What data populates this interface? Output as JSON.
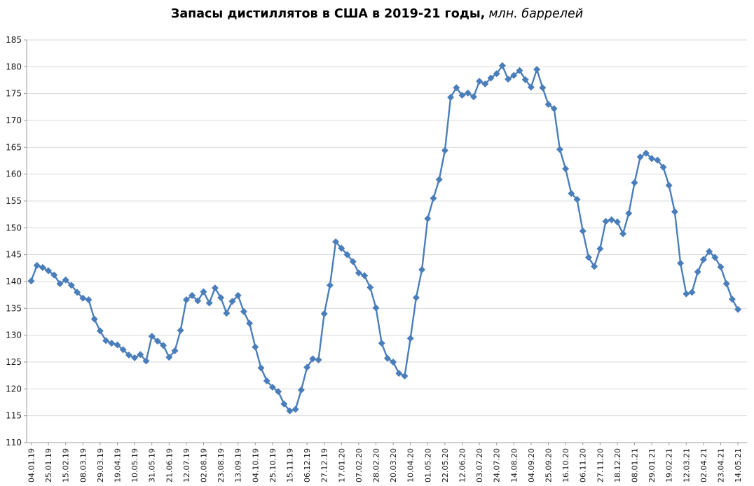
{
  "title": {
    "main": "Запасы дистиллятов в США в 2019-21 годы,",
    "unit": "млн. баррелей"
  },
  "colors": {
    "line": "#4A7EBB",
    "gridline": "#D9D9D9",
    "axis": "#9B9B9B",
    "tick_label": "#1a1a1a",
    "background": "#ffffff"
  },
  "axes": {
    "y_tick_labels": [
      "110",
      "115",
      "120",
      "125",
      "130",
      "135",
      "140",
      "145",
      "150",
      "155",
      "160",
      "165",
      "170",
      "175",
      "180",
      "185"
    ],
    "x_tick_labels": [
      "04.01.19",
      "25.01.19",
      "15.02.19",
      "08.03.19",
      "29.03.19",
      "19.04.19",
      "10.05.19",
      "31.05.19",
      "21.06.19",
      "12.07.19",
      "02.08.19",
      "23.08.19",
      "13.09.19",
      "04.10.19",
      "25.10.19",
      "15.11.19",
      "06.12.19",
      "27.12.19",
      "17.01.20",
      "07.02.20",
      "28.02.20",
      "20.03.20",
      "10.04.20",
      "01.05.20",
      "22.05.20",
      "12.06.20",
      "03.07.20",
      "24.07.20",
      "14.08.20",
      "04.09.20",
      "25.09.20",
      "16.10.20",
      "06.11.20",
      "27.11.20",
      "18.12.20",
      "08.01.21",
      "29.01.21",
      "19.02.21",
      "12.03.21",
      "02.04.21",
      "23.04.21",
      "14.05.21"
    ]
  },
  "chart_data": {
    "type": "line",
    "title": "Запасы дистиллятов в США в 2019-21 годы, млн. баррелей",
    "xlabel": "",
    "ylabel": "",
    "ylim": [
      110,
      185
    ],
    "y_tick_step": 5,
    "x_tick_every": 3,
    "grid": "horizontal-only",
    "legend": "none",
    "marker": "diamond",
    "x": [
      "04.01.19",
      "11.01.19",
      "18.01.19",
      "25.01.19",
      "01.02.19",
      "08.02.19",
      "15.02.19",
      "22.02.19",
      "01.03.19",
      "08.03.19",
      "15.03.19",
      "22.03.19",
      "29.03.19",
      "05.04.19",
      "12.04.19",
      "19.04.19",
      "26.04.19",
      "03.05.19",
      "10.05.19",
      "17.05.19",
      "24.05.19",
      "31.05.19",
      "07.06.19",
      "14.06.19",
      "21.06.19",
      "28.06.19",
      "05.07.19",
      "12.07.19",
      "19.07.19",
      "26.07.19",
      "02.08.19",
      "09.08.19",
      "16.08.19",
      "23.08.19",
      "30.08.19",
      "06.09.19",
      "13.09.19",
      "20.09.19",
      "27.09.19",
      "04.10.19",
      "11.10.19",
      "18.10.19",
      "25.10.19",
      "01.11.19",
      "08.11.19",
      "15.11.19",
      "22.11.19",
      "29.11.19",
      "06.12.19",
      "13.12.19",
      "20.12.19",
      "27.12.19",
      "03.01.20",
      "10.01.20",
      "17.01.20",
      "24.01.20",
      "31.01.20",
      "07.02.20",
      "14.02.20",
      "21.02.20",
      "28.02.20",
      "06.03.20",
      "13.03.20",
      "20.03.20",
      "27.03.20",
      "03.04.20",
      "10.04.20",
      "17.04.20",
      "24.04.20",
      "01.05.20",
      "08.05.20",
      "15.05.20",
      "22.05.20",
      "29.05.20",
      "05.06.20",
      "12.06.20",
      "19.06.20",
      "26.06.20",
      "03.07.20",
      "10.07.20",
      "17.07.20",
      "24.07.20",
      "31.07.20",
      "07.08.20",
      "14.08.20",
      "21.08.20",
      "28.08.20",
      "04.09.20",
      "11.09.20",
      "18.09.20",
      "25.09.20",
      "02.10.20",
      "09.10.20",
      "16.10.20",
      "23.10.20",
      "30.10.20",
      "06.11.20",
      "13.11.20",
      "20.11.20",
      "27.11.20",
      "04.12.20",
      "11.12.20",
      "18.12.20",
      "25.12.20",
      "01.01.21",
      "08.01.21",
      "15.01.21",
      "22.01.21",
      "29.01.21",
      "05.02.21",
      "12.02.21",
      "19.02.21",
      "26.02.21",
      "05.03.21",
      "12.03.21",
      "19.03.21",
      "26.03.21",
      "02.04.21",
      "09.04.21",
      "16.04.21",
      "23.04.21",
      "30.04.21",
      "07.05.21",
      "14.05.21"
    ],
    "values": [
      140.1,
      143.0,
      142.6,
      142.0,
      141.2,
      139.6,
      140.3,
      139.3,
      138.0,
      136.9,
      136.6,
      133.0,
      130.8,
      129.0,
      128.5,
      128.2,
      127.3,
      126.3,
      125.8,
      126.4,
      125.2,
      129.8,
      128.9,
      128.1,
      125.9,
      127.1,
      130.9,
      136.6,
      137.4,
      136.4,
      138.1,
      136.0,
      138.8,
      137.0,
      134.1,
      136.3,
      137.4,
      134.4,
      132.2,
      127.8,
      123.9,
      121.5,
      120.3,
      119.5,
      117.2,
      115.9,
      116.2,
      119.8,
      124.0,
      125.6,
      125.4,
      134.0,
      139.3,
      147.4,
      146.2,
      145.0,
      143.7,
      141.6,
      141.1,
      138.9,
      135.1,
      128.5,
      125.7,
      125.0,
      122.9,
      122.4,
      129.4,
      137.0,
      142.2,
      151.7,
      155.5,
      159.0,
      164.4,
      174.3,
      176.1,
      174.7,
      175.1,
      174.4,
      177.3,
      176.8,
      177.9,
      178.7,
      180.2,
      177.7,
      178.4,
      179.3,
      177.6,
      176.2,
      179.5,
      176.1,
      173.0,
      172.2,
      164.6,
      161.0,
      156.4,
      155.3,
      149.4,
      144.5,
      142.8,
      146.1,
      151.2,
      151.5,
      151.1,
      148.9,
      152.7,
      158.4,
      163.2,
      163.9,
      162.9,
      162.6,
      161.3,
      157.9,
      153.0,
      143.4,
      137.7,
      138.0,
      141.8,
      144.1,
      145.6,
      144.5,
      142.7,
      139.6,
      136.7,
      134.8
    ]
  }
}
